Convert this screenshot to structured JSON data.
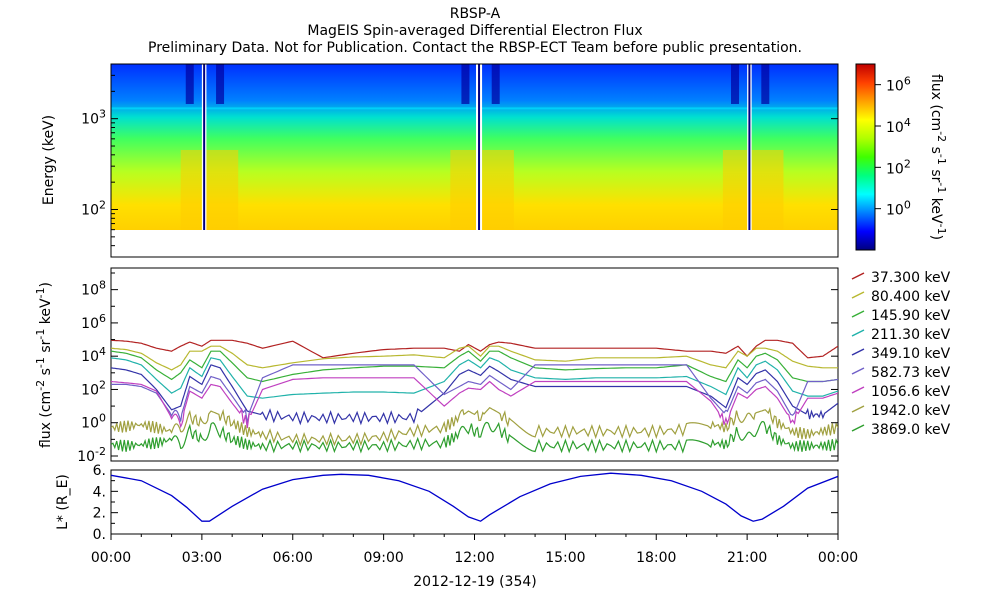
{
  "header": {
    "title": "RBSP-A",
    "subtitle": "MagEIS Spin-averaged Differential Electron Flux",
    "notice": "Preliminary Data. Not for Publication. Contact the RBSP-ECT Team before public presentation."
  },
  "x_axis": {
    "ticks": [
      "00:00",
      "03:00",
      "06:00",
      "09:00",
      "12:00",
      "15:00",
      "18:00",
      "21:00",
      "00:00"
    ],
    "label": "2012-12-19 (354)"
  },
  "chart_data": [
    {
      "type": "heatmap",
      "name": "spectrogram",
      "ylabel": "Energy (keV)",
      "yscale": "log",
      "ylim": [
        30,
        4000
      ],
      "ytick_labels": [
        "10^2",
        "10^3"
      ],
      "xlim_hours": [
        0,
        24
      ],
      "colorbar": {
        "label": "flux (cm^-2 s^-1 sr^-1 keV^-1)",
        "scale": "log",
        "range": [
          0.01,
          10000000
        ],
        "tick_labels": [
          "10^0",
          "10^2",
          "10^4",
          "10^6"
        ],
        "colormap": [
          "#00007f",
          "#0000ff",
          "#0080ff",
          "#00ffff",
          "#00ff80",
          "#40ff00",
          "#b0ff00",
          "#ffff00",
          "#ffa000",
          "#ff4000",
          "#c00000"
        ]
      },
      "data_gaps_hours": [
        [
          3.0,
          3.15
        ],
        [
          12.05,
          12.25
        ],
        [
          21.0,
          21.15
        ]
      ]
    },
    {
      "type": "line",
      "name": "flux-lines",
      "ylabel": "flux (cm^-2 s^-1 sr^-1 keV^-1)",
      "yscale": "log",
      "ylim": [
        0.005,
        2000000000
      ],
      "ytick_labels": [
        "10^-2",
        "10^0",
        "10^2",
        "10^4",
        "10^6",
        "10^8"
      ],
      "x": [
        0,
        0.5,
        1,
        1.5,
        2,
        2.3,
        2.6,
        3.0,
        3.3,
        3.6,
        4.0,
        4.5,
        5,
        6,
        7,
        8,
        9,
        10,
        11,
        11.5,
        11.8,
        12.2,
        12.5,
        12.8,
        13.2,
        14,
        15,
        16,
        17,
        18,
        19,
        19.8,
        20.3,
        20.7,
        21.0,
        21.3,
        21.6,
        22,
        22.5,
        23,
        23.5,
        24
      ],
      "series": [
        {
          "name": "37.300 keV",
          "color": "#b22222",
          "values": [
            90000,
            80000,
            60000,
            30000,
            20000,
            40000,
            70000,
            40000,
            90000,
            90000,
            90000,
            60000,
            30000,
            80000,
            8000,
            15000,
            25000,
            30000,
            30000,
            20000,
            50000,
            20000,
            50000,
            70000,
            60000,
            30000,
            30000,
            30000,
            30000,
            30000,
            20000,
            20000,
            15000,
            40000,
            10000,
            40000,
            90000,
            90000,
            60000,
            8000,
            10000,
            40000
          ]
        },
        {
          "name": "80.400 keV",
          "color": "#b8b830",
          "values": [
            30000,
            25000,
            15000,
            4000,
            1500,
            3000,
            20000,
            20000,
            40000,
            40000,
            15000,
            3000,
            2000,
            4000,
            7000,
            9000,
            10000,
            12000,
            8000,
            30000,
            40000,
            10000,
            40000,
            40000,
            20000,
            6000,
            5000,
            8000,
            8000,
            8000,
            10000,
            3000,
            2000,
            20000,
            10000,
            30000,
            30000,
            20000,
            5000,
            2500,
            2000,
            2000
          ]
        },
        {
          "name": "145.90 keV",
          "color": "#38b038",
          "values": [
            20000,
            15000,
            8000,
            1500,
            400,
            1000,
            6000,
            2000,
            20000,
            20000,
            4000,
            500,
            300,
            800,
            1500,
            2000,
            2500,
            2500,
            2000,
            10000,
            20000,
            5000,
            20000,
            20000,
            8000,
            2000,
            1500,
            1800,
            2000,
            2000,
            3000,
            600,
            300,
            6000,
            2000,
            10000,
            15000,
            6000,
            500,
            300,
            300,
            400
          ]
        },
        {
          "name": "211.30 keV",
          "color": "#20b2aa",
          "values": [
            8000,
            6000,
            3000,
            400,
            60,
            120,
            2000,
            600,
            8000,
            6000,
            600,
            40,
            30,
            50,
            60,
            70,
            70,
            60,
            300,
            3000,
            6000,
            2000,
            8000,
            5000,
            1500,
            500,
            400,
            500,
            500,
            500,
            600,
            150,
            50,
            2000,
            500,
            3000,
            5000,
            1500,
            80,
            40,
            40,
            80
          ]
        },
        {
          "name": "349.10 keV",
          "color": "#3333a8",
          "values": [
            2000,
            1500,
            800,
            100,
            6,
            10,
            600,
            200,
            3000,
            2000,
            150,
            5,
            3,
            2,
            2,
            2,
            2,
            2,
            60,
            800,
            1500,
            700,
            2500,
            1200,
            400,
            150,
            150,
            150,
            150,
            150,
            150,
            40,
            8,
            500,
            200,
            900,
            1500,
            300,
            10,
            3,
            3,
            15
          ]
        },
        {
          "name": "582.73 keV",
          "color": "#7060c8",
          "values": [
            200,
            200,
            150,
            60,
            3,
            2,
            150,
            60,
            600,
            400,
            40,
            2,
            500,
            3000,
            3000,
            3000,
            3000,
            3000,
            50,
            150,
            300,
            200,
            700,
            300,
            100,
            3000,
            3000,
            3000,
            3000,
            3000,
            3000,
            30,
            3,
            150,
            60,
            250,
            400,
            80,
            2,
            300,
            300,
            400
          ]
        },
        {
          "name": "1056.6 keV",
          "color": "#c040c0",
          "values": [
            300,
            250,
            200,
            80,
            2,
            1,
            80,
            30,
            200,
            150,
            15,
            1,
            100,
            400,
            500,
            500,
            500,
            500,
            10,
            60,
            120,
            100,
            300,
            100,
            40,
            300,
            300,
            300,
            300,
            300,
            300,
            20,
            1,
            60,
            30,
            100,
            150,
            30,
            1,
            30,
            30,
            60
          ]
        },
        {
          "name": "1942.0 keV",
          "color": "#a0a040",
          "values": [
            0.5,
            0.6,
            0.8,
            0.5,
            0.3,
            0.5,
            2,
            1,
            5,
            3,
            1,
            0.3,
            0.2,
            0.1,
            0.1,
            0.1,
            0.15,
            0.3,
            0.5,
            2,
            5,
            2,
            8,
            4,
            1,
            0.3,
            0.3,
            0.3,
            0.3,
            0.3,
            0.4,
            0.8,
            0.5,
            3,
            1.5,
            4,
            6,
            1,
            0.3,
            0.2,
            0.3,
            0.5
          ]
        },
        {
          "name": "3869.0 keV",
          "color": "#2e9e2e",
          "values": [
            0.05,
            0.04,
            0.05,
            0.06,
            0.1,
            0.05,
            0.3,
            0.1,
            0.5,
            0.3,
            0.1,
            0.05,
            0.04,
            0.04,
            0.04,
            0.04,
            0.04,
            0.05,
            0.06,
            0.2,
            0.5,
            0.2,
            0.8,
            0.4,
            0.1,
            0.04,
            0.04,
            0.04,
            0.04,
            0.04,
            0.04,
            0.06,
            0.05,
            0.3,
            0.1,
            0.4,
            0.6,
            0.1,
            0.04,
            0.04,
            0.04,
            0.05
          ]
        }
      ]
    },
    {
      "type": "line",
      "name": "lstar",
      "ylabel": "L* (R_E)",
      "ylim": [
        0,
        6
      ],
      "ytick_labels": [
        "0.",
        "2.",
        "4.",
        "6."
      ],
      "ytick_values": [
        0,
        2,
        4,
        6
      ],
      "minor_ticks": [
        1,
        3,
        5
      ],
      "series": [
        {
          "name": "L*",
          "color": "#0000cc",
          "x": [
            0,
            1,
            2,
            2.5,
            3.0,
            3.25,
            4,
            5,
            6,
            7,
            7.6,
            8.5,
            9.5,
            10.5,
            11.3,
            11.8,
            12.2,
            12.5,
            13.5,
            14.5,
            15.5,
            16.5,
            17.5,
            18.5,
            19.5,
            20.3,
            20.8,
            21.2,
            21.5,
            22.2,
            23,
            24
          ],
          "values": [
            5.5,
            5.0,
            3.6,
            2.5,
            1.2,
            1.2,
            2.6,
            4.2,
            5.1,
            5.5,
            5.6,
            5.5,
            5.0,
            4.0,
            2.6,
            1.6,
            1.2,
            1.8,
            3.5,
            4.7,
            5.4,
            5.7,
            5.5,
            5.0,
            4.0,
            2.8,
            1.7,
            1.2,
            1.4,
            2.6,
            4.3,
            5.4
          ]
        }
      ]
    }
  ]
}
